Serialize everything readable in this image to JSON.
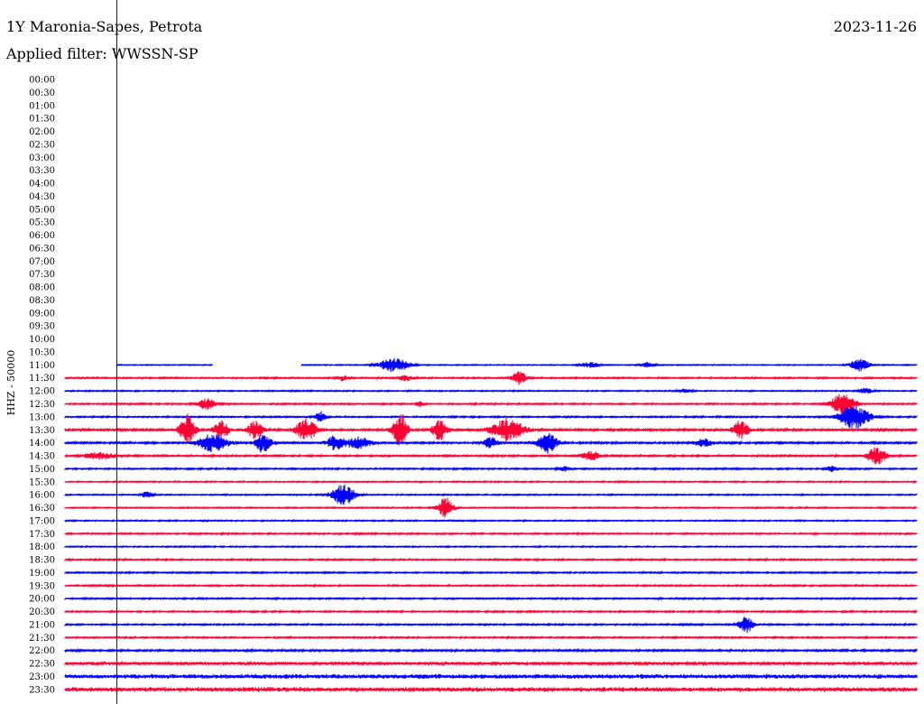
{
  "header": {
    "station": "1Y Maronia-Sapes, Petrota",
    "date": "2023-11-26",
    "filter_label": "Applied filter:",
    "filter_name": "WWSSN-SP"
  },
  "colors": {
    "blue": "#0000ff",
    "red": "#ff0033",
    "marker": "#0000ff"
  },
  "chart_data": {
    "type": "line",
    "title": "",
    "ylabel": "HHZ - 50000",
    "xlabel": "",
    "grid": false,
    "legend": "none",
    "row_labels": [
      "00:00",
      "00:30",
      "01:00",
      "01:30",
      "02:00",
      "02:30",
      "03:00",
      "03:30",
      "04:00",
      "04:30",
      "05:00",
      "05:30",
      "06:00",
      "06:30",
      "07:00",
      "07:30",
      "08:00",
      "08:30",
      "09:00",
      "09:30",
      "10:00",
      "10:30",
      "11:00",
      "11:30",
      "12:00",
      "12:30",
      "13:00",
      "13:30",
      "14:00",
      "14:30",
      "15:00",
      "15:30",
      "16:00",
      "16:30",
      "17:00",
      "17:30",
      "18:00",
      "18:30",
      "19:00",
      "19:30",
      "20:00",
      "20:30",
      "21:00",
      "21:30",
      "22:00",
      "22:30",
      "23:00",
      "23:30"
    ],
    "data_start_row": 22,
    "row_colors": [
      "blue",
      "red"
    ],
    "x_range_minutes": [
      0,
      30
    ],
    "marker_minute": 1.8,
    "row_noise": {
      "22": 0.4,
      "23": 0.6,
      "24": 0.5,
      "25": 0.6,
      "26": 0.6,
      "27": 0.9,
      "28": 0.8,
      "29": 0.7,
      "30": 0.6,
      "31": 0.5,
      "32": 0.5,
      "33": 0.5,
      "34": 0.5,
      "35": 0.6,
      "36": 0.5,
      "37": 0.6,
      "38": 0.6,
      "39": 0.6,
      "40": 0.6,
      "41": 0.6,
      "42": 0.6,
      "43": 0.6,
      "44": 0.8,
      "45": 1.2,
      "46": 1.8,
      "47": 1.8
    },
    "gaps": [
      {
        "row": 22,
        "from": 0.0,
        "to": 1.8
      },
      {
        "row": 22,
        "from": 5.2,
        "to": 8.3
      }
    ],
    "events": [
      {
        "row": 22,
        "minute": 11.6,
        "amp": 8,
        "width": 0.8
      },
      {
        "row": 22,
        "minute": 18.5,
        "amp": 3,
        "width": 0.5
      },
      {
        "row": 22,
        "minute": 20.5,
        "amp": 3,
        "width": 0.4
      },
      {
        "row": 22,
        "minute": 28.0,
        "amp": 7,
        "width": 0.5
      },
      {
        "row": 23,
        "minute": 12.0,
        "amp": 3,
        "width": 0.4
      },
      {
        "row": 23,
        "minute": 9.8,
        "amp": 3,
        "width": 0.3
      },
      {
        "row": 23,
        "minute": 16.0,
        "amp": 7,
        "width": 0.4
      },
      {
        "row": 24,
        "minute": 21.8,
        "amp": 2,
        "width": 0.4
      },
      {
        "row": 24,
        "minute": 28.2,
        "amp": 3,
        "width": 0.4
      },
      {
        "row": 25,
        "minute": 5.0,
        "amp": 6,
        "width": 0.5
      },
      {
        "row": 25,
        "minute": 12.5,
        "amp": 3,
        "width": 0.2
      },
      {
        "row": 25,
        "minute": 27.4,
        "amp": 14,
        "width": 0.6
      },
      {
        "row": 26,
        "minute": 9.0,
        "amp": 6,
        "width": 0.3
      },
      {
        "row": 26,
        "minute": 27.8,
        "amp": 14,
        "width": 0.8
      },
      {
        "row": 27,
        "minute": 4.3,
        "amp": 18,
        "width": 0.4
      },
      {
        "row": 27,
        "minute": 5.5,
        "amp": 10,
        "width": 0.4
      },
      {
        "row": 27,
        "minute": 6.7,
        "amp": 10,
        "width": 0.4
      },
      {
        "row": 27,
        "minute": 8.5,
        "amp": 12,
        "width": 0.6
      },
      {
        "row": 27,
        "minute": 11.8,
        "amp": 18,
        "width": 0.4
      },
      {
        "row": 27,
        "minute": 13.2,
        "amp": 12,
        "width": 0.4
      },
      {
        "row": 27,
        "minute": 15.6,
        "amp": 12,
        "width": 0.9
      },
      {
        "row": 27,
        "minute": 23.8,
        "amp": 10,
        "width": 0.4
      },
      {
        "row": 28,
        "minute": 5.2,
        "amp": 10,
        "width": 0.8
      },
      {
        "row": 28,
        "minute": 7.0,
        "amp": 12,
        "width": 0.4
      },
      {
        "row": 28,
        "minute": 9.5,
        "amp": 8,
        "width": 0.4
      },
      {
        "row": 28,
        "minute": 10.3,
        "amp": 6,
        "width": 0.8
      },
      {
        "row": 28,
        "minute": 15.0,
        "amp": 6,
        "width": 0.4
      },
      {
        "row": 28,
        "minute": 17.0,
        "amp": 12,
        "width": 0.5
      },
      {
        "row": 28,
        "minute": 22.5,
        "amp": 4,
        "width": 0.5
      },
      {
        "row": 29,
        "minute": 1.2,
        "amp": 4,
        "width": 0.8
      },
      {
        "row": 29,
        "minute": 18.5,
        "amp": 5,
        "width": 0.5
      },
      {
        "row": 29,
        "minute": 28.6,
        "amp": 10,
        "width": 0.5
      },
      {
        "row": 30,
        "minute": 17.6,
        "amp": 3,
        "width": 0.3
      },
      {
        "row": 30,
        "minute": 27.0,
        "amp": 3,
        "width": 0.3
      },
      {
        "row": 32,
        "minute": 2.9,
        "amp": 4,
        "width": 0.3
      },
      {
        "row": 32,
        "minute": 9.8,
        "amp": 12,
        "width": 0.6
      },
      {
        "row": 33,
        "minute": 13.4,
        "amp": 12,
        "width": 0.4
      },
      {
        "row": 42,
        "minute": 24.0,
        "amp": 9,
        "width": 0.4
      }
    ]
  }
}
